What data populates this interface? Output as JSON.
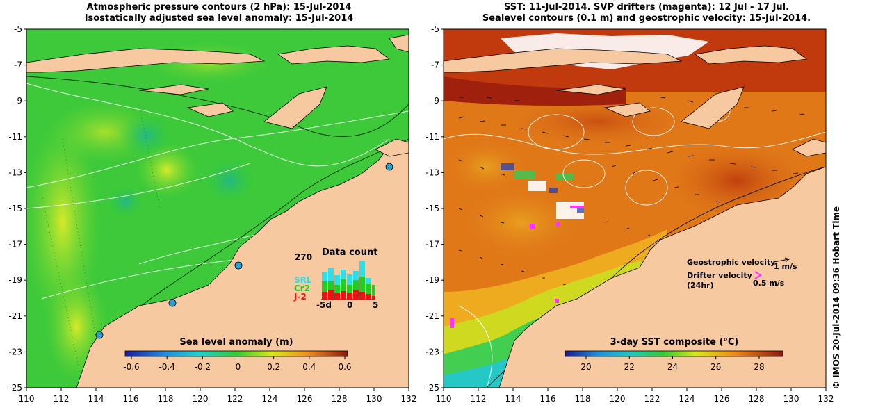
{
  "left_panel": {
    "title_line1": "Atmospheric pressure contours (2 hPa): 15-Jul-2014",
    "title_line2": "Isostatically adjusted sea level anomaly: 15-Jul-2014",
    "colorbar_title": "Sea level anomaly (m)",
    "colorbar_ticks": [
      "-0.6",
      "-0.4",
      "-0.2",
      "0",
      "0.2",
      "0.4",
      "0.6"
    ],
    "pressure_label": "270",
    "data_count": {
      "title": "Data count",
      "legend": [
        {
          "label": "SRL",
          "color": "#33dde8"
        },
        {
          "label": "Cr2",
          "color": "#22cc22"
        },
        {
          "label": "J-2",
          "color": "#ee1111"
        }
      ],
      "x_labels": [
        "-5d",
        "0",
        "5"
      ]
    }
  },
  "right_panel": {
    "title_line1": "SST: 11-Jul-2014. SVP drifters (magenta): 12 Jul - 17 Jul.",
    "title_line2": "Sealevel contours (0.1 m) and geostrophic velocity: 15-Jul-2014.",
    "colorbar_title": "3-day SST composite (°C)",
    "colorbar_ticks": [
      "20",
      "22",
      "24",
      "26",
      "28"
    ],
    "geo_velocity_label": "Geostrophic velocity",
    "geo_velocity_scale": "1 m/s",
    "drifter_label_1": "Drifter velocity",
    "drifter_label_2": "(24hr)",
    "drifter_scale": "0.5 m/s"
  },
  "axes": {
    "x_ticks": [
      "110",
      "112",
      "114",
      "116",
      "118",
      "120",
      "122",
      "124",
      "126",
      "128",
      "130",
      "132"
    ],
    "y_ticks": [
      "-5",
      "-7",
      "-9",
      "-11",
      "-13",
      "-15",
      "-17",
      "-19",
      "-21",
      "-23",
      "-25"
    ]
  },
  "credit": "© IMOS 20-Jul-2014 09:36 Hobart Time",
  "colors": {
    "land": "#f7c9a0",
    "sla_green": "#33cc33",
    "sst_orange": "#e07818",
    "drifter": "#ff33ff"
  }
}
